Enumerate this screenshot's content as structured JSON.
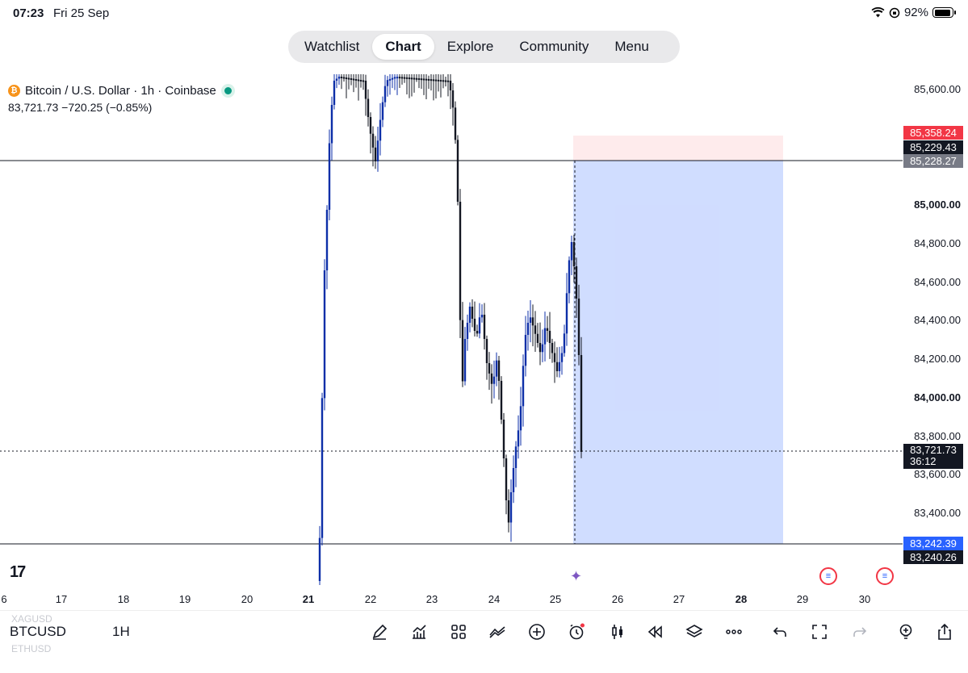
{
  "status_bar": {
    "time": "07:23",
    "date": "Fri 25 Sep",
    "battery": "92%",
    "battery_level": 0.92
  },
  "nav": {
    "items": [
      "Watchlist",
      "Chart",
      "Explore",
      "Community",
      "Menu"
    ],
    "active": "Chart"
  },
  "legend": {
    "symbol_title": "Bitcoin / U.S. Dollar · 1h · Coinbase",
    "ohlc_line": "83,721.73  −720.25 (−0.85%)",
    "live_color": "#089981"
  },
  "price_axis": {
    "labels": [
      "85,600.00",
      "85,000.00",
      "84,800.00",
      "84,600.00",
      "84,400.00",
      "84,200.00",
      "84,000.00",
      "83,800.00",
      "83,600.00",
      "83,400.00"
    ],
    "bold_labels": [
      "85,000.00",
      "84,000.00"
    ]
  },
  "price_tags": {
    "stop": {
      "value": "85,358.24",
      "color": "#f23645"
    },
    "entry_hi": {
      "value": "85,229.43",
      "color": "#131722"
    },
    "entry": {
      "value": "85,228.27",
      "color": "#787b86"
    },
    "last": {
      "value": "83,721.73",
      "countdown": "36:12",
      "color": "#131722"
    },
    "target": {
      "value": "83,242.39",
      "color": "#2962ff"
    },
    "low": {
      "value": "83,240.26",
      "color": "#131722"
    }
  },
  "time_axis": {
    "labels": [
      "6",
      "17",
      "18",
      "19",
      "20",
      "21",
      "22",
      "23",
      "24",
      "25",
      "26",
      "27",
      "28",
      "29",
      "30"
    ],
    "bold_labels": [
      "21",
      "28"
    ]
  },
  "chart_data": {
    "type": "candlestick",
    "symbol": "BTCUSD",
    "interval": "1H",
    "bull_color": "#0d2fa8",
    "bear_color": "#131722",
    "ylim": [
      83150,
      85660
    ],
    "position_tool": {
      "type": "short",
      "entry": 85228.27,
      "stop": 85358.24,
      "target": 83242.39,
      "profit_color": "#2962ff",
      "loss_color": "#f23645"
    },
    "horizontal_lines": [
      85228.27,
      83242.39
    ],
    "last_price": 83721.73
  },
  "bottom_bar": {
    "ticker": "BTCUSD",
    "ticker_prev": "XAGUSD",
    "ticker_next": "ETHUSD",
    "interval": "1H",
    "tools": [
      "pen-icon",
      "indicators-icon",
      "apps-icon",
      "compare-icon",
      "add-icon",
      "alert-icon",
      "candles-icon",
      "replay-icon",
      "layers-icon",
      "more-icon",
      "undo-icon",
      "fullscreen-icon",
      "redo-icon",
      "bulb-icon",
      "share-icon"
    ]
  }
}
